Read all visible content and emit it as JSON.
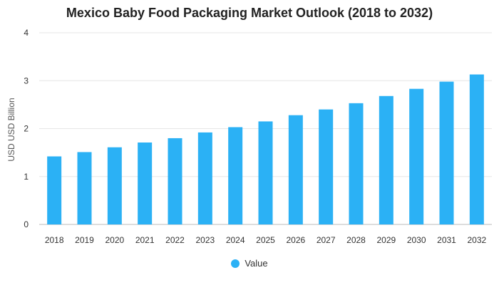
{
  "chart_data": {
    "type": "bar",
    "title": "Mexico Baby Food Packaging Market Outlook (2018 to 2032)",
    "xlabel": "",
    "ylabel": "USD USD Billion",
    "ylim": [
      0,
      4
    ],
    "yticks": [
      "0",
      "1",
      "2",
      "3",
      "4"
    ],
    "grid": true,
    "legend_position": "bottom",
    "categories": [
      "2018",
      "2019",
      "2020",
      "2021",
      "2022",
      "2023",
      "2024",
      "2025",
      "2026",
      "2027",
      "2028",
      "2029",
      "2030",
      "2031",
      "2032"
    ],
    "series": [
      {
        "name": "Value",
        "color": "#2bb1f5",
        "values": [
          1.42,
          1.51,
          1.61,
          1.71,
          1.8,
          1.92,
          2.03,
          2.15,
          2.28,
          2.4,
          2.53,
          2.68,
          2.83,
          2.98,
          3.13
        ]
      }
    ]
  }
}
